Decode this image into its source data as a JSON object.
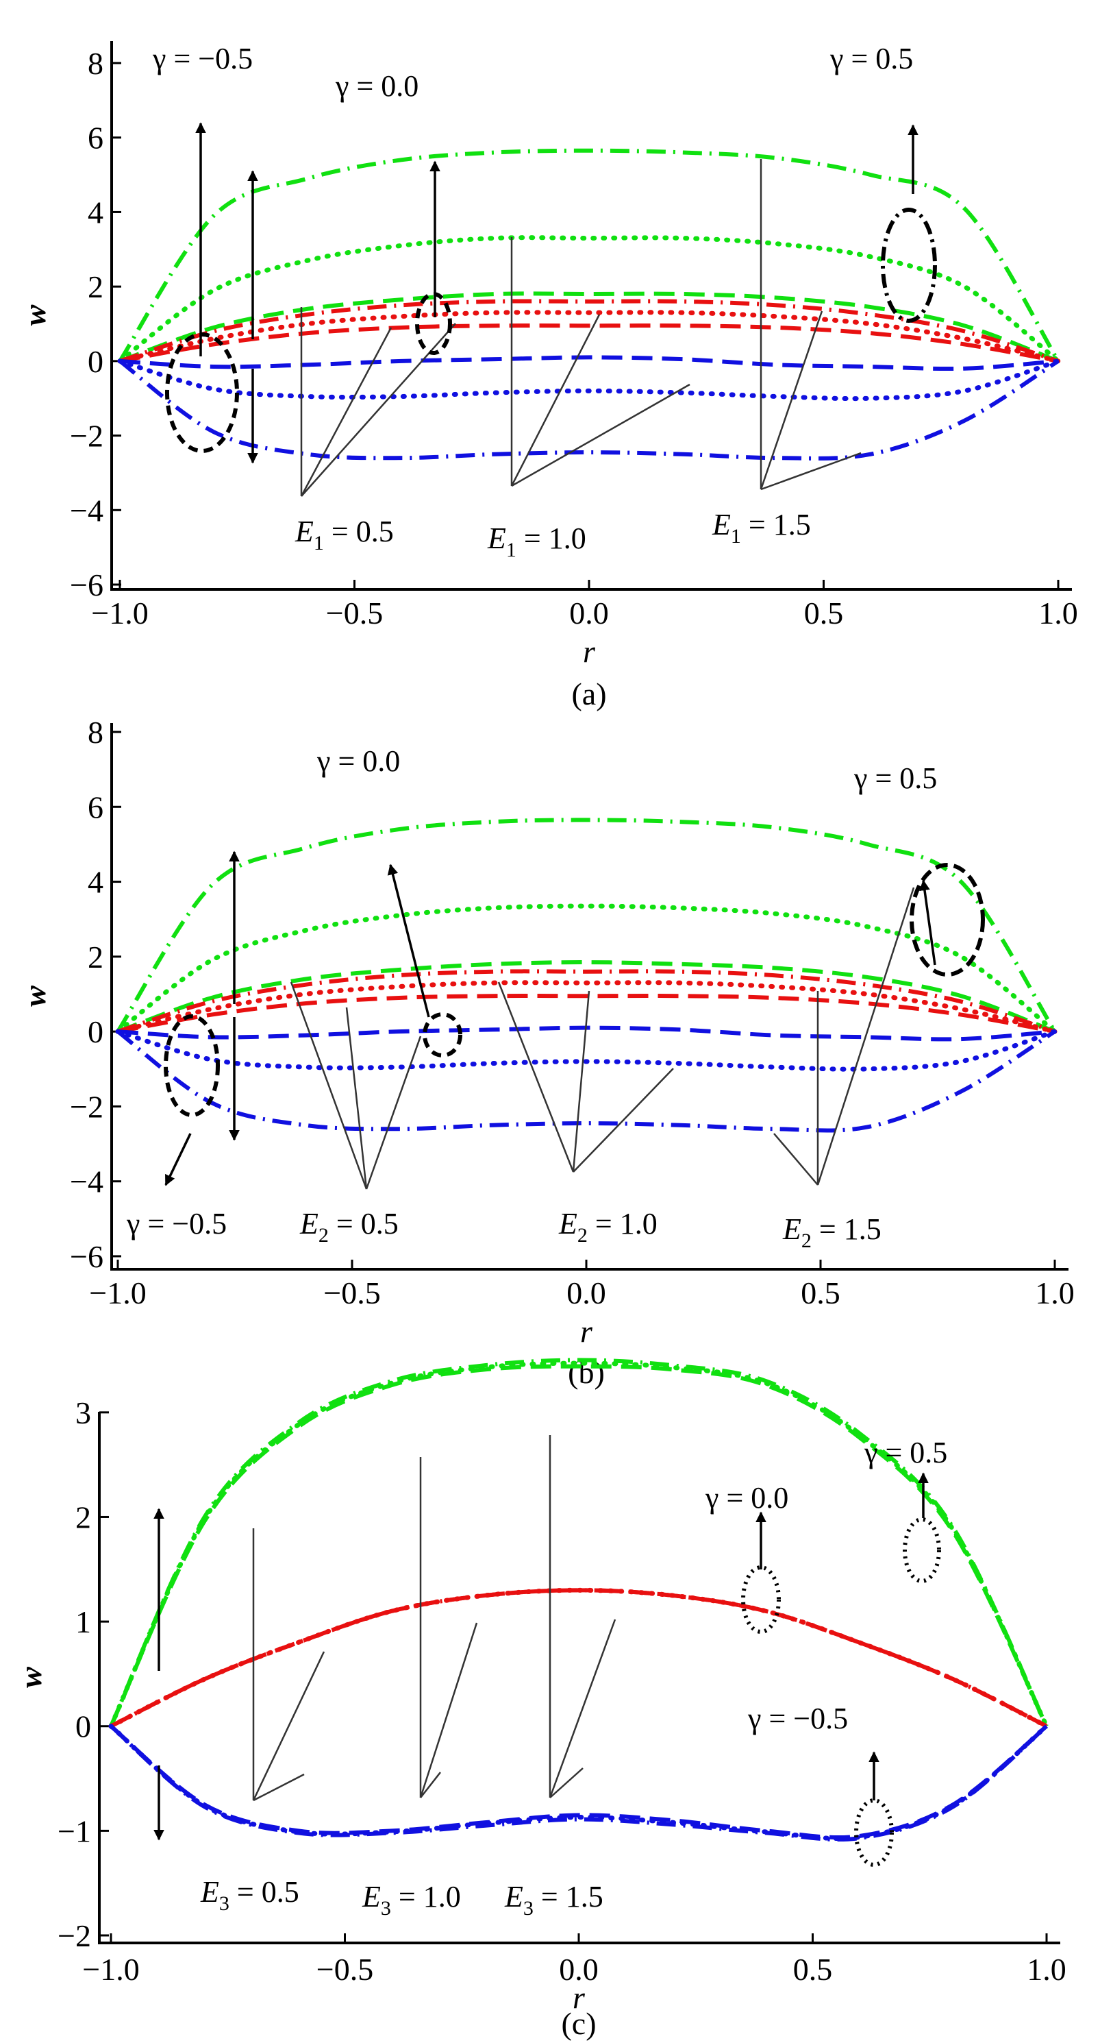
{
  "colors": {
    "gamma_neg": "#1010e0",
    "gamma_zero": "#e81010",
    "gamma_pos": "#10e010",
    "annotation": "#000000"
  },
  "chart_data": [
    {
      "type": "line",
      "panel_label": "(a)",
      "xlabel": "r",
      "ylabel": "w",
      "xlim": [
        -1.0,
        1.0
      ],
      "ylim": [
        -6,
        8
      ],
      "xticks": [
        "−1.0",
        "−0.5",
        "0.0",
        "0.5",
        "1.0"
      ],
      "xtick_values": [
        -1,
        -0.5,
        0,
        0.5,
        1
      ],
      "yticks": [
        "−6",
        "−4",
        "−2",
        "0",
        "2",
        "4",
        "6",
        "8"
      ],
      "ytick_values": [
        -6,
        -4,
        -2,
        0,
        2,
        4,
        6,
        8
      ],
      "x": [
        -1,
        -0.8,
        -0.6,
        -0.4,
        -0.2,
        0,
        0.2,
        0.4,
        0.6,
        0.8,
        1
      ],
      "series": [
        {
          "name": "γ = 0.5, E1 = 1.5",
          "color": "gamma_pos",
          "style": "dashdot",
          "values": [
            0,
            3.9,
            4.9,
            5.4,
            5.6,
            5.65,
            5.6,
            5.45,
            5.0,
            4.1,
            0
          ]
        },
        {
          "name": "γ = 0.5, E1 = 1.0",
          "color": "gamma_pos",
          "style": "dotted",
          "values": [
            0,
            1.9,
            2.7,
            3.1,
            3.3,
            3.3,
            3.3,
            3.15,
            2.8,
            2.0,
            0
          ]
        },
        {
          "name": "γ = 0.5, E1 = 0.5",
          "color": "gamma_pos",
          "style": "dashed",
          "values": [
            0,
            0.9,
            1.4,
            1.65,
            1.8,
            1.8,
            1.8,
            1.7,
            1.45,
            0.95,
            0
          ]
        },
        {
          "name": "γ = 0.0, E1 = 1.5",
          "color": "gamma_zero",
          "style": "dashdot",
          "values": [
            0,
            0.8,
            1.25,
            1.5,
            1.6,
            1.6,
            1.6,
            1.5,
            1.25,
            0.8,
            0
          ]
        },
        {
          "name": "γ = 0.0, E1 = 1.0",
          "color": "gamma_zero",
          "style": "dotted",
          "values": [
            0,
            0.6,
            1.0,
            1.2,
            1.3,
            1.3,
            1.3,
            1.2,
            1.0,
            0.6,
            0
          ]
        },
        {
          "name": "γ = 0.0, E1 = 0.5",
          "color": "gamma_zero",
          "style": "dashed",
          "values": [
            0,
            0.45,
            0.75,
            0.9,
            0.95,
            0.95,
            0.95,
            0.9,
            0.75,
            0.45,
            0
          ]
        },
        {
          "name": "γ = −0.5, E1 = 0.5",
          "color": "gamma_neg",
          "style": "dashed",
          "values": [
            0,
            -0.15,
            -0.1,
            0,
            0.05,
            0.1,
            0.05,
            -0.1,
            -0.15,
            -0.2,
            0
          ]
        },
        {
          "name": "γ = −0.5, E1 = 1.0",
          "color": "gamma_neg",
          "style": "dotted",
          "values": [
            0,
            -0.75,
            -0.95,
            -0.95,
            -0.85,
            -0.8,
            -0.85,
            -0.95,
            -1.0,
            -0.8,
            0
          ]
        },
        {
          "name": "γ = −0.5, E1 = 1.5",
          "color": "gamma_neg",
          "style": "dashdot",
          "values": [
            0,
            -1.9,
            -2.5,
            -2.6,
            -2.5,
            -2.45,
            -2.5,
            -2.6,
            -2.5,
            -1.6,
            0
          ]
        }
      ],
      "annotations": {
        "gamma": [
          "γ = −0.5",
          "γ = 0.0",
          "γ = 0.5"
        ],
        "param": [
          {
            "symbol": "E",
            "subscript": "1",
            "rest": " = 0.5"
          },
          {
            "symbol": "E",
            "subscript": "1",
            "rest": " = 1.0"
          },
          {
            "symbol": "E",
            "subscript": "1",
            "rest": " = 1.5"
          }
        ]
      }
    },
    {
      "type": "line",
      "panel_label": "(b)",
      "xlabel": "r",
      "ylabel": "w",
      "xlim": [
        -1.0,
        1.0
      ],
      "ylim": [
        -6,
        8
      ],
      "xticks": [
        "−1.0",
        "−0.5",
        "0.0",
        "0.5",
        "1.0"
      ],
      "xtick_values": [
        -1,
        -0.5,
        0,
        0.5,
        1
      ],
      "yticks": [
        "−6",
        "−4",
        "−2",
        "0",
        "2",
        "4",
        "6",
        "8"
      ],
      "ytick_values": [
        -6,
        -4,
        -2,
        0,
        2,
        4,
        6,
        8
      ],
      "x": [
        -1,
        -0.8,
        -0.6,
        -0.4,
        -0.2,
        0,
        0.2,
        0.4,
        0.6,
        0.8,
        1
      ],
      "series": [
        {
          "name": "γ = 0.5, E2 = 1.5",
          "color": "gamma_pos",
          "style": "dashdot",
          "values": [
            0,
            3.9,
            4.9,
            5.4,
            5.6,
            5.65,
            5.6,
            5.45,
            5.0,
            4.0,
            0
          ]
        },
        {
          "name": "γ = 0.5, E2 = 1.0",
          "color": "gamma_pos",
          "style": "dotted",
          "values": [
            0,
            1.9,
            2.7,
            3.1,
            3.3,
            3.35,
            3.3,
            3.15,
            2.8,
            2.0,
            0
          ]
        },
        {
          "name": "γ = 0.5, E2 = 0.5",
          "color": "gamma_pos",
          "style": "dashed",
          "values": [
            0,
            0.9,
            1.4,
            1.65,
            1.8,
            1.85,
            1.8,
            1.7,
            1.45,
            0.95,
            0
          ]
        },
        {
          "name": "γ = 0.0, E2 = 1.5",
          "color": "gamma_zero",
          "style": "dashdot",
          "values": [
            0,
            0.8,
            1.25,
            1.5,
            1.6,
            1.6,
            1.6,
            1.5,
            1.25,
            0.8,
            0
          ]
        },
        {
          "name": "γ = 0.0, E2 = 1.0",
          "color": "gamma_zero",
          "style": "dotted",
          "values": [
            0,
            0.6,
            1.0,
            1.2,
            1.3,
            1.3,
            1.3,
            1.2,
            1.0,
            0.6,
            0
          ]
        },
        {
          "name": "γ = 0.0, E2 = 0.5",
          "color": "gamma_zero",
          "style": "dashed",
          "values": [
            0,
            0.45,
            0.75,
            0.9,
            0.95,
            0.95,
            0.95,
            0.9,
            0.75,
            0.45,
            0
          ]
        },
        {
          "name": "γ = −0.5, E2 = 0.5",
          "color": "gamma_neg",
          "style": "dashed",
          "values": [
            0,
            -0.15,
            -0.1,
            0,
            0.05,
            0.1,
            0.05,
            -0.1,
            -0.15,
            -0.2,
            0
          ]
        },
        {
          "name": "γ = −0.5, E2 = 1.0",
          "color": "gamma_neg",
          "style": "dotted",
          "values": [
            0,
            -0.75,
            -0.95,
            -0.95,
            -0.85,
            -0.8,
            -0.85,
            -0.95,
            -1.0,
            -0.8,
            0
          ]
        },
        {
          "name": "γ = −0.5, E2 = 1.5",
          "color": "gamma_neg",
          "style": "dashdot",
          "values": [
            0,
            -1.9,
            -2.5,
            -2.6,
            -2.5,
            -2.45,
            -2.5,
            -2.6,
            -2.55,
            -1.6,
            0
          ]
        }
      ],
      "annotations": {
        "gamma": [
          "γ = −0.5",
          "γ = 0.0",
          "γ = 0.5"
        ],
        "param": [
          {
            "symbol": "E",
            "subscript": "2",
            "rest": " = 0.5"
          },
          {
            "symbol": "E",
            "subscript": "2",
            "rest": " = 1.0"
          },
          {
            "symbol": "E",
            "subscript": "2",
            "rest": " = 1.5"
          }
        ]
      }
    },
    {
      "type": "line",
      "panel_label": "(c)",
      "xlabel": "r",
      "ylabel": "w",
      "xlim": [
        -1.0,
        1.0
      ],
      "ylim": [
        -2,
        3.7
      ],
      "xticks": [
        "−1.0",
        "−0.5",
        "0.0",
        "0.5",
        "1.0"
      ],
      "xtick_values": [
        -1,
        -0.5,
        0,
        0.5,
        1
      ],
      "yticks": [
        "−2",
        "−1",
        "0",
        "1",
        "2",
        "3"
      ],
      "ytick_values": [
        -2,
        -1,
        0,
        1,
        2,
        3
      ],
      "x": [
        -1,
        -0.8,
        -0.6,
        -0.4,
        -0.2,
        0,
        0.2,
        0.4,
        0.6,
        0.8,
        1
      ],
      "series": [
        {
          "name": "γ = 0.5, E3 = 1.5",
          "color": "gamma_pos",
          "style": "dashdot",
          "values": [
            0,
            2.0,
            2.9,
            3.3,
            3.45,
            3.5,
            3.45,
            3.3,
            2.8,
            1.9,
            0
          ]
        },
        {
          "name": "γ = 0.5, E3 = 1.0",
          "color": "gamma_pos",
          "style": "dotted",
          "values": [
            0,
            1.98,
            2.88,
            3.28,
            3.43,
            3.47,
            3.43,
            3.28,
            2.78,
            1.88,
            0
          ]
        },
        {
          "name": "γ = 0.5, E3 = 0.5",
          "color": "gamma_pos",
          "style": "dashed",
          "values": [
            0,
            1.96,
            2.86,
            3.26,
            3.41,
            3.44,
            3.41,
            3.26,
            2.76,
            1.86,
            0
          ]
        },
        {
          "name": "γ = 0.0, E3 = 1.5",
          "color": "gamma_zero",
          "style": "dashdot",
          "values": [
            0,
            0.45,
            0.8,
            1.1,
            1.25,
            1.3,
            1.25,
            1.1,
            0.8,
            0.45,
            0
          ]
        },
        {
          "name": "γ = 0.0, E3 = 1.0",
          "color": "gamma_zero",
          "style": "dotted",
          "values": [
            0,
            0.45,
            0.8,
            1.1,
            1.25,
            1.3,
            1.25,
            1.1,
            0.8,
            0.45,
            0
          ]
        },
        {
          "name": "γ = 0.0, E3 = 0.5",
          "color": "gamma_zero",
          "style": "dashed",
          "values": [
            0,
            0.45,
            0.8,
            1.1,
            1.25,
            1.3,
            1.25,
            1.1,
            0.8,
            0.45,
            0
          ]
        },
        {
          "name": "γ = −0.5, E3 = 0.5",
          "color": "gamma_neg",
          "style": "dashed",
          "values": [
            0,
            -0.75,
            -1.0,
            -1.0,
            -0.92,
            -0.85,
            -0.9,
            -1.0,
            -1.05,
            -0.75,
            0
          ]
        },
        {
          "name": "γ = −0.5, E3 = 1.0",
          "color": "gamma_neg",
          "style": "dotted",
          "values": [
            0,
            -0.76,
            -1.01,
            -1.01,
            -0.93,
            -0.87,
            -0.92,
            -1.01,
            -1.06,
            -0.76,
            0
          ]
        },
        {
          "name": "γ = −0.5, E3 = 1.5",
          "color": "gamma_neg",
          "style": "dashdot",
          "values": [
            0,
            -0.77,
            -1.02,
            -1.02,
            -0.95,
            -0.89,
            -0.94,
            -1.02,
            -1.07,
            -0.77,
            0
          ]
        }
      ],
      "annotations": {
        "gamma": [
          "γ = −0.5",
          "γ = 0.0",
          "γ = 0.5"
        ],
        "param": [
          {
            "symbol": "E",
            "subscript": "3",
            "rest": " = 0.5"
          },
          {
            "symbol": "E",
            "subscript": "3",
            "rest": " = 1.0"
          },
          {
            "symbol": "E",
            "subscript": "3",
            "rest": " = 1.5"
          }
        ]
      }
    }
  ]
}
